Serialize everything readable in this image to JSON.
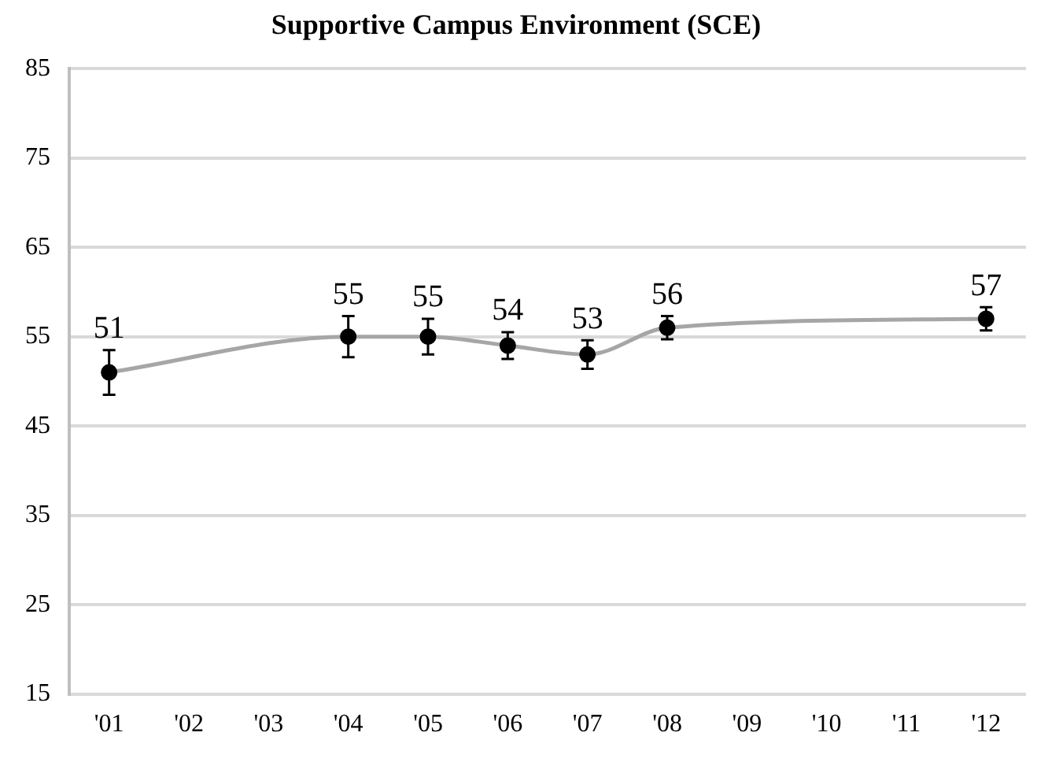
{
  "chart_data": {
    "type": "line",
    "title": "Supportive Campus Environment (SCE)",
    "categories": [
      "'01",
      "'02",
      "'03",
      "'04",
      "'05",
      "'06",
      "'07",
      "'08",
      "'09",
      "'10",
      "'11",
      "'12"
    ],
    "series": [
      {
        "color": "#a6a6a6",
        "colors": [
          "#000000",
          null,
          null,
          "#000000",
          "#000000",
          "#000000",
          "#000000",
          "#000000",
          null,
          null,
          null,
          "#000000"
        ],
        "values": [
          51,
          null,
          null,
          55,
          55,
          54,
          53,
          56,
          null,
          null,
          null,
          57
        ],
        "errors": [
          2.5,
          null,
          null,
          2.3,
          2,
          1.5,
          1.6,
          1.3,
          null,
          null,
          null,
          1.3
        ]
      }
    ],
    "ylim": [
      15,
      85
    ],
    "yticks": [
      15,
      25,
      35,
      45,
      55,
      65,
      75,
      85
    ],
    "grid": "y",
    "marker": "circle",
    "data_labels": true,
    "legend": false
  }
}
